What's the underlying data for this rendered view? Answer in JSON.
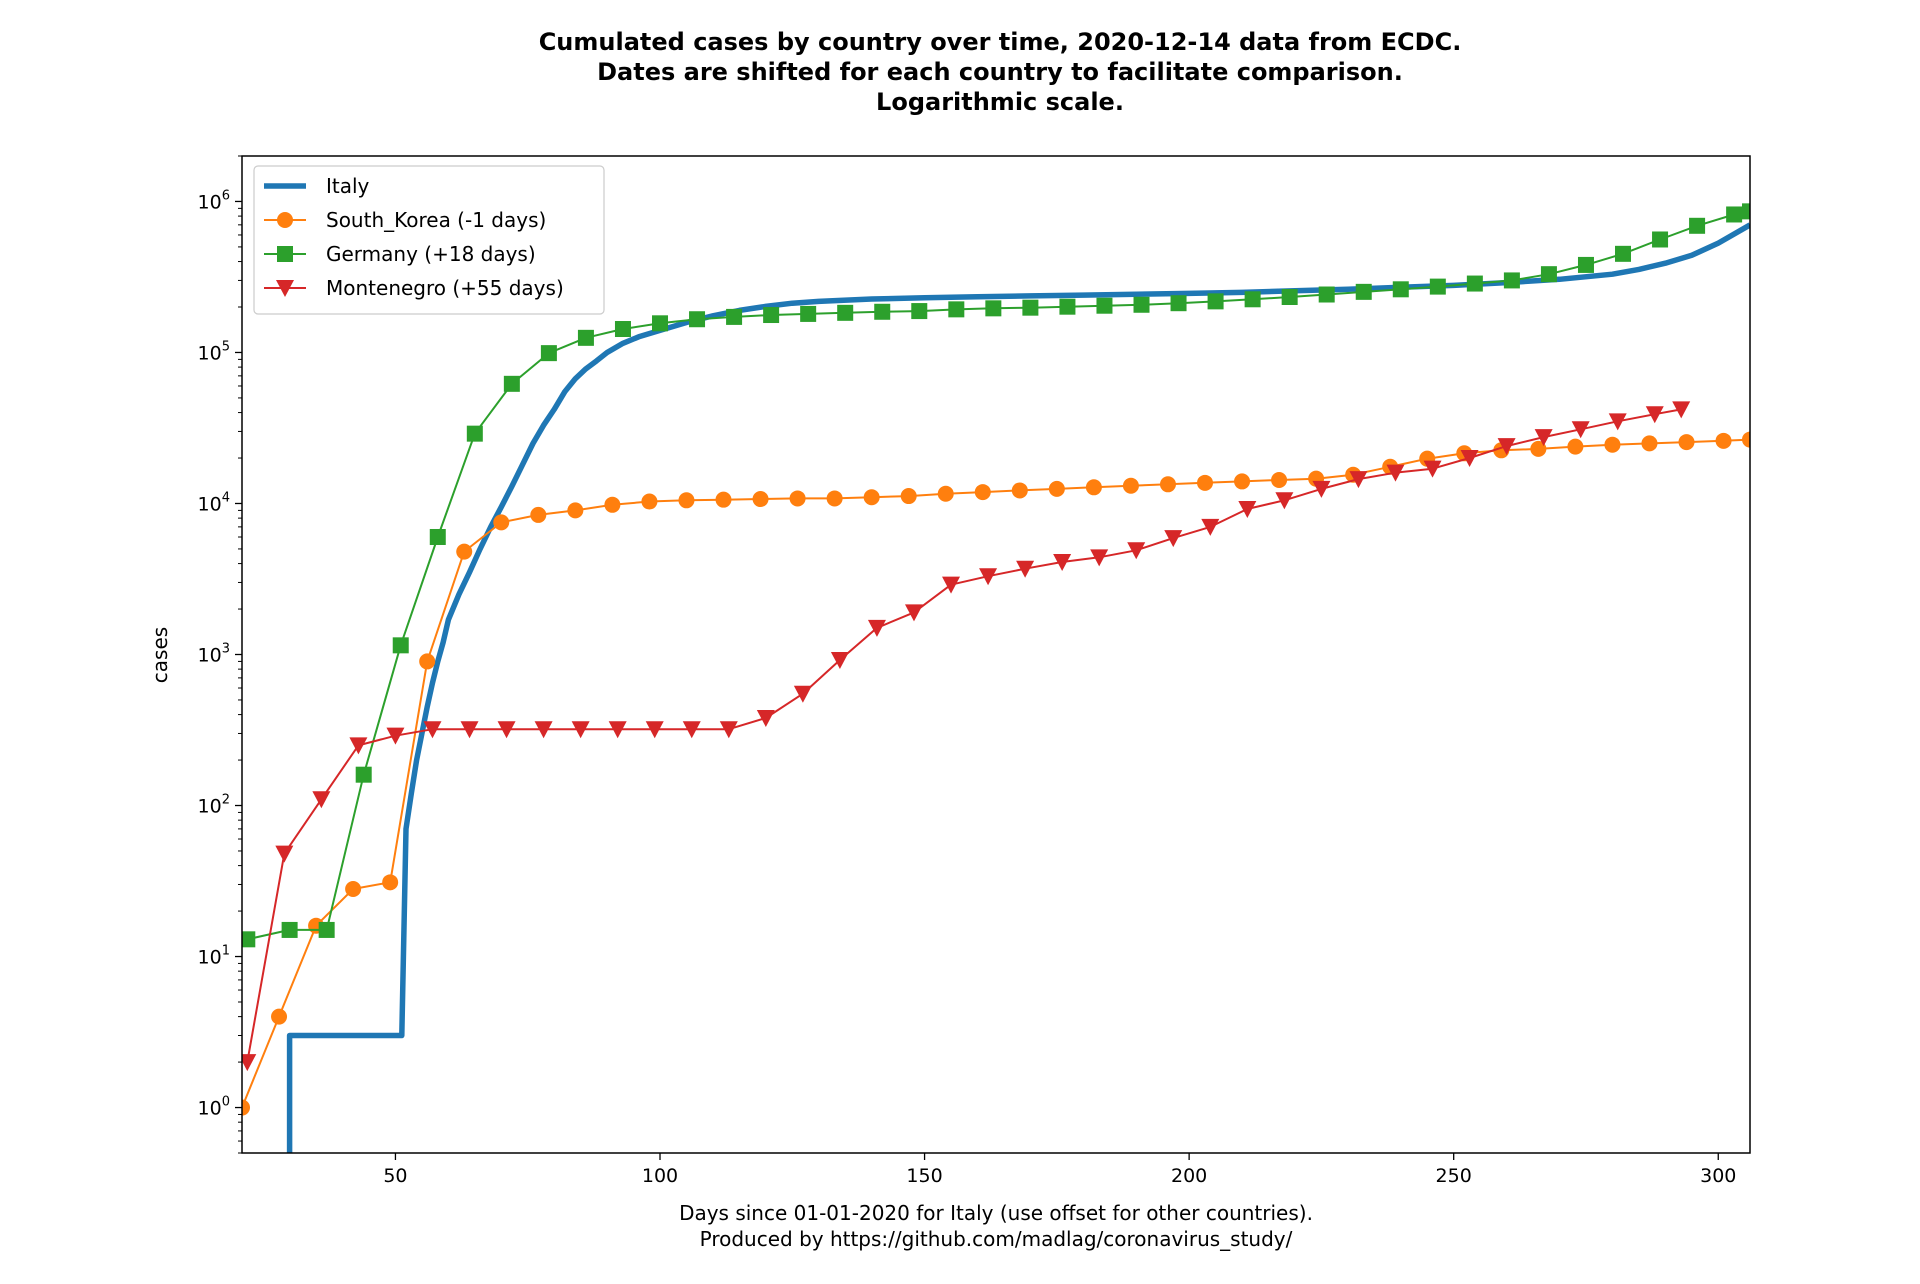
{
  "chart_data": {
    "type": "line",
    "title_lines": [
      "Cumulated cases by country over time, 2020-12-14 data from ECDC.",
      "Dates are shifted for each country to facilitate comparison.",
      "Logarithmic scale."
    ],
    "xlabel_lines": [
      "Days since 01-01-2020 for Italy (use offset for other countries).",
      "Produced by https://github.com/madlag/coronavirus_study/"
    ],
    "ylabel": "cases",
    "x_scale": "linear",
    "y_scale": "log",
    "xlim": [
      21,
      306
    ],
    "ylim": [
      0.5,
      2000000
    ],
    "x_ticks": [
      50,
      100,
      150,
      200,
      250,
      300
    ],
    "y_ticks": [
      1,
      10,
      100,
      1000,
      10000,
      100000,
      1000000
    ],
    "y_tick_labels": [
      {
        "base": "10",
        "exp": "0"
      },
      {
        "base": "10",
        "exp": "1"
      },
      {
        "base": "10",
        "exp": "2"
      },
      {
        "base": "10",
        "exp": "3"
      },
      {
        "base": "10",
        "exp": "4"
      },
      {
        "base": "10",
        "exp": "5"
      },
      {
        "base": "10",
        "exp": "6"
      }
    ],
    "grid": false,
    "legend_position": "top-left",
    "series": [
      {
        "name": "Italy",
        "color": "#1f77b4",
        "marker": "none",
        "points": [
          [
            30,
            0.3
          ],
          [
            30,
            3
          ],
          [
            51,
            3
          ],
          [
            51.2,
            3
          ],
          [
            52,
            70
          ],
          [
            53,
            120
          ],
          [
            54,
            200
          ],
          [
            55,
            300
          ],
          [
            56,
            450
          ],
          [
            57,
            650
          ],
          [
            58,
            900
          ],
          [
            59,
            1200
          ],
          [
            60,
            1700
          ],
          [
            62,
            2500
          ],
          [
            64,
            3500
          ],
          [
            66,
            5000
          ],
          [
            68,
            7000
          ],
          [
            70,
            9500
          ],
          [
            72,
            13000
          ],
          [
            74,
            18000
          ],
          [
            76,
            25000
          ],
          [
            78,
            33000
          ],
          [
            80,
            42000
          ],
          [
            82,
            55000
          ],
          [
            84,
            67000
          ],
          [
            86,
            78000
          ],
          [
            88,
            88000
          ],
          [
            90,
            100000
          ],
          [
            93,
            115000
          ],
          [
            96,
            127000
          ],
          [
            100,
            140000
          ],
          [
            105,
            158000
          ],
          [
            110,
            175000
          ],
          [
            115,
            190000
          ],
          [
            120,
            202000
          ],
          [
            125,
            212000
          ],
          [
            130,
            218000
          ],
          [
            140,
            226000
          ],
          [
            150,
            230000
          ],
          [
            160,
            234000
          ],
          [
            170,
            237000
          ],
          [
            180,
            240000
          ],
          [
            190,
            243000
          ],
          [
            200,
            246000
          ],
          [
            210,
            250000
          ],
          [
            220,
            256000
          ],
          [
            230,
            262000
          ],
          [
            240,
            270000
          ],
          [
            250,
            278000
          ],
          [
            260,
            290000
          ],
          [
            270,
            305000
          ],
          [
            280,
            330000
          ],
          [
            285,
            355000
          ],
          [
            290,
            390000
          ],
          [
            295,
            440000
          ],
          [
            300,
            530000
          ],
          [
            306,
            700000
          ]
        ]
      },
      {
        "name": "South_Korea (-1 days)",
        "color": "#ff7f0e",
        "marker": "circle",
        "points": [
          [
            21,
            1
          ],
          [
            28,
            4
          ],
          [
            35,
            16
          ],
          [
            42,
            28
          ],
          [
            49,
            31
          ],
          [
            56,
            900
          ],
          [
            63,
            4800
          ],
          [
            70,
            7500
          ],
          [
            77,
            8400
          ],
          [
            84,
            9000
          ],
          [
            91,
            9800
          ],
          [
            98,
            10300
          ],
          [
            105,
            10500
          ],
          [
            112,
            10600
          ],
          [
            119,
            10700
          ],
          [
            126,
            10800
          ],
          [
            133,
            10800
          ],
          [
            140,
            11000
          ],
          [
            147,
            11200
          ],
          [
            154,
            11600
          ],
          [
            161,
            11900
          ],
          [
            168,
            12200
          ],
          [
            175,
            12500
          ],
          [
            182,
            12800
          ],
          [
            189,
            13100
          ],
          [
            196,
            13400
          ],
          [
            203,
            13700
          ],
          [
            210,
            14000
          ],
          [
            217,
            14300
          ],
          [
            224,
            14600
          ],
          [
            231,
            15500
          ],
          [
            238,
            17500
          ],
          [
            245,
            19800
          ],
          [
            252,
            21500
          ],
          [
            259,
            22500
          ],
          [
            266,
            23000
          ],
          [
            273,
            23800
          ],
          [
            280,
            24500
          ],
          [
            287,
            25000
          ],
          [
            294,
            25500
          ],
          [
            301,
            26000
          ],
          [
            306,
            26500
          ]
        ]
      },
      {
        "name": "Germany (+18 days)",
        "color": "#2ca02c",
        "marker": "square",
        "points": [
          [
            22,
            13
          ],
          [
            30,
            15
          ],
          [
            37,
            15
          ],
          [
            44,
            160
          ],
          [
            51,
            1150
          ],
          [
            58,
            6000
          ],
          [
            65,
            29000
          ],
          [
            72,
            62000
          ],
          [
            79,
            99000
          ],
          [
            86,
            125000
          ],
          [
            93,
            143000
          ],
          [
            100,
            156000
          ],
          [
            107,
            166000
          ],
          [
            114,
            172000
          ],
          [
            121,
            177000
          ],
          [
            128,
            180000
          ],
          [
            135,
            183000
          ],
          [
            142,
            186000
          ],
          [
            149,
            188000
          ],
          [
            156,
            193000
          ],
          [
            163,
            196000
          ],
          [
            170,
            198000
          ],
          [
            177,
            201000
          ],
          [
            184,
            204000
          ],
          [
            191,
            207000
          ],
          [
            198,
            212000
          ],
          [
            205,
            218000
          ],
          [
            212,
            225000
          ],
          [
            219,
            233000
          ],
          [
            226,
            242000
          ],
          [
            233,
            252000
          ],
          [
            240,
            262000
          ],
          [
            247,
            273000
          ],
          [
            254,
            286000
          ],
          [
            261,
            300000
          ],
          [
            268,
            330000
          ],
          [
            275,
            380000
          ],
          [
            282,
            450000
          ],
          [
            289,
            560000
          ],
          [
            296,
            690000
          ],
          [
            303,
            820000
          ],
          [
            306,
            860000
          ]
        ]
      },
      {
        "name": "Montenegro (+55 days)",
        "color": "#d62728",
        "marker": "triangle-down",
        "points": [
          [
            22,
            2
          ],
          [
            29,
            48
          ],
          [
            36,
            110
          ],
          [
            43,
            250
          ],
          [
            50,
            290
          ],
          [
            57,
            320
          ],
          [
            64,
            320
          ],
          [
            71,
            320
          ],
          [
            78,
            320
          ],
          [
            85,
            320
          ],
          [
            92,
            320
          ],
          [
            99,
            320
          ],
          [
            106,
            320
          ],
          [
            113,
            320
          ],
          [
            120,
            380
          ],
          [
            127,
            550
          ],
          [
            134,
            920
          ],
          [
            141,
            1500
          ],
          [
            148,
            1900
          ],
          [
            155,
            2900
          ],
          [
            162,
            3300
          ],
          [
            169,
            3700
          ],
          [
            176,
            4100
          ],
          [
            183,
            4400
          ],
          [
            190,
            4900
          ],
          [
            197,
            5900
          ],
          [
            204,
            7000
          ],
          [
            211,
            9200
          ],
          [
            218,
            10500
          ],
          [
            225,
            12500
          ],
          [
            232,
            14500
          ],
          [
            239,
            16000
          ],
          [
            246,
            17000
          ],
          [
            253,
            20000
          ],
          [
            260,
            24000
          ],
          [
            267,
            27500
          ],
          [
            274,
            31000
          ],
          [
            281,
            35000
          ],
          [
            288,
            39000
          ],
          [
            293,
            42000
          ]
        ]
      }
    ]
  }
}
